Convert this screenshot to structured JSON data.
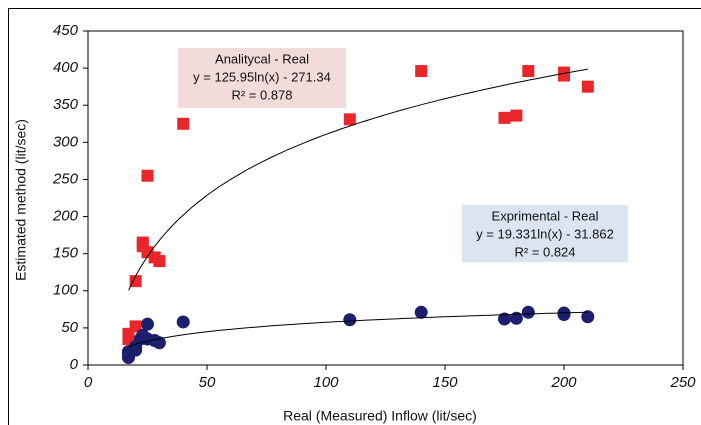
{
  "chart_data": {
    "type": "scatter",
    "xlabel": "Real (Measured) Inflow (lit/sec)",
    "ylabel": "Estimated method (lit/sec)",
    "xlim": [
      0,
      250
    ],
    "xticks": [
      0,
      50,
      100,
      150,
      200,
      250
    ],
    "ylim": [
      0,
      450
    ],
    "yticks": [
      0,
      50,
      100,
      150,
      200,
      250,
      300,
      350,
      400,
      450
    ],
    "grid": false,
    "series": [
      {
        "name": "Analitycal - Real",
        "color": "#e8262b",
        "marker": "square",
        "x": [
          17,
          17,
          20,
          20,
          23,
          23,
          25,
          25,
          28,
          30,
          40,
          110,
          140,
          175,
          180,
          185,
          200,
          200,
          210
        ],
        "values": [
          42,
          35,
          113,
          52,
          165,
          160,
          255,
          152,
          145,
          140,
          325,
          331,
          396,
          333,
          336,
          396,
          394,
          390,
          375
        ],
        "annotation": [
          "Analitycal - Real",
          "y = 125.95ln(x) - 271.34",
          "R² = 0.878"
        ],
        "annotation_color": "#f2dcdb"
      },
      {
        "name": "Exprimental - Real",
        "color": "#1b1f6e",
        "marker": "circle",
        "x": [
          17,
          17,
          17,
          20,
          20,
          22,
          23,
          25,
          25,
          28,
          30,
          40,
          110,
          140,
          175,
          180,
          185,
          200,
          200,
          210
        ],
        "values": [
          10,
          15,
          18,
          20,
          25,
          35,
          40,
          55,
          35,
          33,
          30,
          58,
          61,
          71,
          62,
          63,
          71,
          70,
          68,
          65
        ],
        "annotation": [
          "Exprimental - Real",
          "y = 19.331ln(x) - 31.862",
          "R² = 0.824"
        ],
        "annotation_color": "#dbe5f1"
      }
    ]
  }
}
